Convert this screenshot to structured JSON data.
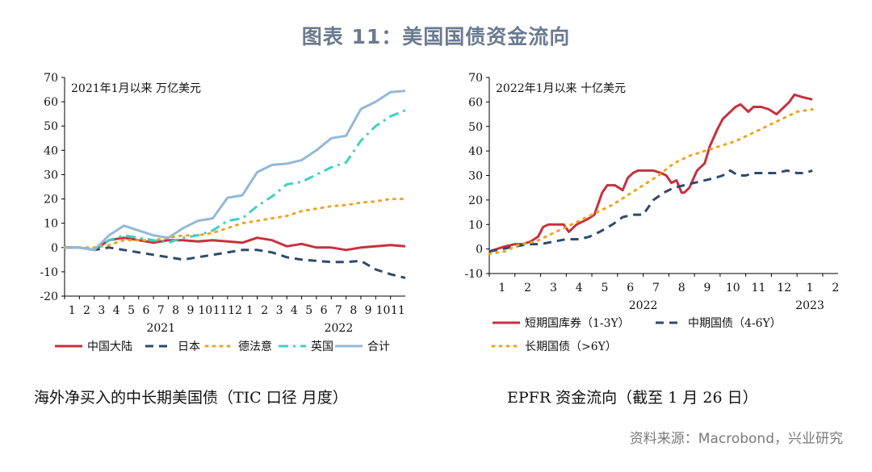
{
  "figure_title": "图表 11：美国国债资金流向",
  "source": "资料来源：Macrobond，兴业研究",
  "colors": {
    "red": "#c8303e",
    "navy": "#2f4a6d",
    "orange": "#f0a31e",
    "teal": "#3fd0c4",
    "lightblue": "#93b8d8"
  },
  "chart_data": [
    {
      "type": "line",
      "caption": "海外净买入的中长期美国债（TIC 口径 月度）",
      "annotation": "2021年1月以来  万亿美元",
      "ylim": [
        -20,
        70
      ],
      "yticks": [
        -20,
        -10,
        0,
        10,
        20,
        30,
        40,
        50,
        60,
        70
      ],
      "month_labels": [
        "1",
        "2",
        "3",
        "4",
        "5",
        "6",
        "7",
        "8",
        "9",
        "10",
        "11",
        "12",
        "1",
        "2",
        "3",
        "4",
        "5",
        "6",
        "7",
        "8",
        "9",
        "10",
        "11"
      ],
      "year_labels": [
        {
          "label": "2021",
          "at": 6.5
        },
        {
          "label": "2022",
          "at": 18.5
        }
      ],
      "x_range": [
        0,
        23
      ],
      "series": [
        {
          "name": "中国大陆",
          "color": "#c8303e",
          "dash": "solid",
          "x": [
            0,
            1,
            2,
            3,
            4,
            5,
            6,
            7,
            8,
            9,
            10,
            11,
            12,
            13,
            14,
            15,
            16,
            17,
            18,
            19,
            20,
            21,
            22,
            23
          ],
          "y": [
            0,
            0,
            -1,
            3,
            4,
            3,
            2,
            3,
            3,
            2.5,
            3,
            2.5,
            2,
            4,
            3,
            0.5,
            1.5,
            0,
            0,
            -1,
            0,
            0.5,
            1,
            0.5
          ]
        },
        {
          "name": "日本",
          "color": "#2f4a6d",
          "dash": "dashed",
          "x": [
            0,
            1,
            2,
            3,
            4,
            5,
            6,
            7,
            8,
            9,
            10,
            11,
            12,
            13,
            14,
            15,
            16,
            17,
            18,
            19,
            20,
            21,
            22,
            23
          ],
          "y": [
            0,
            0,
            -1,
            0,
            -1,
            -2,
            -3,
            -4,
            -5,
            -4,
            -3,
            -2,
            -1,
            -1,
            -2,
            -4,
            -5,
            -5.5,
            -6,
            -6,
            -5.5,
            -9,
            -11,
            -12.5
          ]
        },
        {
          "name": "德法意",
          "color": "#f0a31e",
          "dash": "dotted",
          "x": [
            0,
            1,
            2,
            3,
            4,
            5,
            6,
            7,
            8,
            9,
            10,
            11,
            12,
            13,
            14,
            15,
            16,
            17,
            18,
            19,
            20,
            21,
            22,
            23
          ],
          "y": [
            0,
            0,
            0,
            1,
            3,
            3,
            3,
            4,
            5,
            5,
            6,
            8,
            10,
            11,
            12,
            13,
            15,
            16,
            17,
            17.5,
            18.5,
            19,
            20,
            20
          ]
        },
        {
          "name": "英国",
          "color": "#3fd0c4",
          "dash": "dashdot",
          "x": [
            0,
            1,
            2,
            3,
            4,
            5,
            6,
            7,
            8,
            9,
            10,
            11,
            12,
            13,
            14,
            15,
            16,
            17,
            18,
            19,
            20,
            21,
            22,
            23
          ],
          "y": [
            0,
            0,
            -1,
            3,
            5,
            4,
            3,
            2,
            4,
            5,
            7,
            11,
            12,
            17,
            21,
            26,
            27,
            30,
            33,
            35,
            44,
            50,
            54,
            56.5
          ]
        },
        {
          "name": "合计",
          "color": "#93b8d8",
          "dash": "solid",
          "x": [
            0,
            1,
            2,
            3,
            4,
            5,
            6,
            7,
            8,
            9,
            10,
            11,
            12,
            13,
            14,
            15,
            16,
            17,
            18,
            19,
            20,
            21,
            22,
            23
          ],
          "y": [
            0,
            0,
            -1,
            5,
            9,
            7,
            5,
            4,
            8,
            11,
            12,
            20.5,
            21.5,
            31,
            34,
            34.5,
            36,
            40,
            45,
            46,
            57,
            60,
            64,
            64.5
          ]
        }
      ]
    },
    {
      "type": "line",
      "caption": "EPFR 资金流向（截至 1 月 26 日）",
      "annotation": "2022年1月以来  十亿美元",
      "ylim": [
        -10,
        70
      ],
      "yticks": [
        -10,
        0,
        10,
        20,
        30,
        40,
        50,
        60,
        70
      ],
      "month_labels": [
        "1",
        "2",
        "3",
        "4",
        "5",
        "6",
        "7",
        "8",
        "9",
        "10",
        "11",
        "12",
        "1",
        "2"
      ],
      "year_labels": [
        {
          "label": "2022",
          "at": 6
        },
        {
          "label": "2023",
          "at": 12.5
        }
      ],
      "x_range": [
        0,
        13.6
      ],
      "series": [
        {
          "name": "短期国库券（1-3Y）",
          "color": "#c8303e",
          "dash": "solid",
          "x": [
            0,
            0.3,
            0.6,
            1,
            1.3,
            1.6,
            1.9,
            2.1,
            2.3,
            2.6,
            2.9,
            3.1,
            3.4,
            3.8,
            4.1,
            4.4,
            4.6,
            4.9,
            5.2,
            5.4,
            5.6,
            5.8,
            6.1,
            6.4,
            6.7,
            6.9,
            7.1,
            7.3,
            7.5,
            7.6,
            7.8,
            8.1,
            8.4,
            8.6,
            8.9,
            9.1,
            9.4,
            9.6,
            9.8,
            10.1,
            10.3,
            10.6,
            10.9,
            11.2,
            11.5,
            11.7,
            11.9,
            12.2,
            12.6
          ],
          "y": [
            -1,
            0,
            1,
            2,
            2,
            3,
            5,
            9,
            10,
            10,
            10,
            7,
            10,
            12,
            14,
            23,
            26,
            26,
            24,
            29,
            31,
            32,
            32,
            32,
            31,
            30,
            27,
            28,
            23,
            23,
            25,
            32,
            35,
            42,
            49,
            53,
            56,
            58,
            59,
            56,
            58,
            58,
            57,
            55,
            58,
            60,
            63,
            62,
            61
          ]
        },
        {
          "name": "中期国债（4-6Y）",
          "color": "#2f4a6d",
          "dash": "dashed",
          "x": [
            0,
            0.5,
            1,
            1.5,
            2,
            2.5,
            3,
            3.5,
            3.9,
            4.3,
            4.8,
            5.2,
            5.6,
            6,
            6.4,
            6.8,
            7.2,
            7.6,
            8,
            8.4,
            8.8,
            9.1,
            9.4,
            9.7,
            10,
            10.3,
            10.7,
            11.2,
            11.6,
            12,
            12.3,
            12.6
          ],
          "y": [
            -1,
            0,
            1,
            2,
            2,
            3,
            4,
            4,
            5,
            7,
            10,
            13,
            14,
            14,
            20,
            23,
            25,
            26,
            27,
            28,
            29,
            30,
            32,
            30,
            30,
            31,
            31,
            31,
            32,
            31,
            31,
            32
          ]
        },
        {
          "name": "长期国债（>6Y）",
          "color": "#f0a31e",
          "dash": "dotted",
          "x": [
            0,
            0.6,
            1.2,
            1.8,
            2.4,
            3,
            3.6,
            4.2,
            4.8,
            5.4,
            6,
            6.6,
            7.2,
            7.8,
            8.4,
            9,
            9.6,
            10.2,
            10.8,
            11.4,
            12,
            12.6
          ],
          "y": [
            -2,
            -1,
            2,
            3,
            6,
            9,
            12,
            15,
            18,
            22,
            26,
            30,
            35,
            38,
            40,
            42,
            44,
            47,
            50,
            53,
            56,
            57
          ]
        }
      ]
    }
  ]
}
